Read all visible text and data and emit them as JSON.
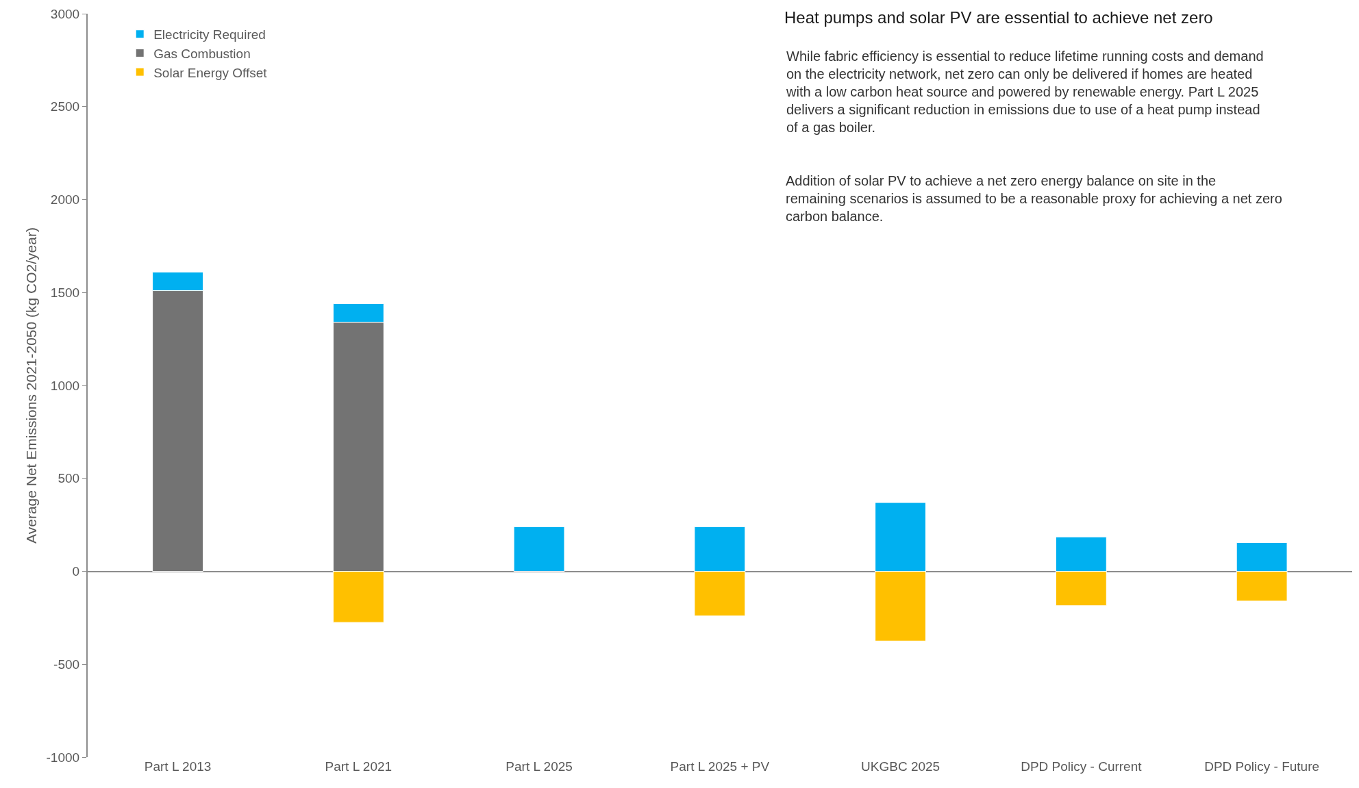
{
  "chart_data": {
    "type": "bar",
    "stacked": true,
    "title": "Heat pumps and solar PV are essential to achieve net zero",
    "annotations": [
      "While fabric efficiency is essential to reduce lifetime running costs and demand on the electricity network, net zero can only be delivered if homes are heated with a low carbon heat source and powered by renewable energy. Part L 2025 delivers a significant reduction in emissions due to use of a heat pump instead of a gas boiler.",
      "Addition of solar PV to achieve a net zero energy balance on site in the remaining scenarios is assumed to be a reasonable proxy for achieving a net zero carbon balance."
    ],
    "ylabel": "Average Net Emissions 2021-2050 (kg CO2/year)",
    "categories": [
      "Part L 2013",
      "Part L 2021",
      "Part L 2025",
      "Part L 2025 + PV",
      "UKGBC 2025",
      "DPD Policy - Current",
      "DPD Policy - Future"
    ],
    "series": [
      {
        "name": "Gas Combustion",
        "color": "#737373",
        "values": [
          1510,
          1340,
          null,
          null,
          null,
          null,
          null
        ]
      },
      {
        "name": "Electricity Required",
        "color": "#00b0f0",
        "values": [
          100,
          100,
          240,
          240,
          370,
          185,
          155
        ]
      },
      {
        "name": "Solar Energy Offset",
        "color": "#ffc000",
        "values": [
          null,
          -275,
          null,
          -240,
          -375,
          -185,
          -160
        ]
      }
    ],
    "ylim": [
      -1000,
      3000
    ],
    "yticks": [
      -1000,
      -500,
      0,
      500,
      1000,
      1500,
      2000,
      2500,
      3000
    ],
    "legend": "top left"
  }
}
